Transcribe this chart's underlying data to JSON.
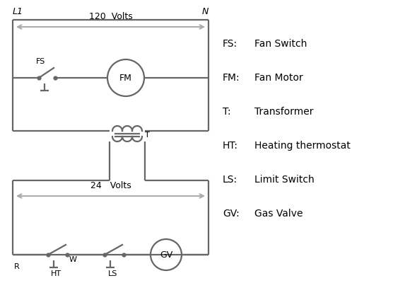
{
  "bg_color": "#ffffff",
  "line_color": "#666666",
  "text_color": "#000000",
  "legend_items": [
    [
      "FS:",
      "Fan Switch"
    ],
    [
      "FM:",
      "Fan Motor"
    ],
    [
      "T:",
      "Transformer"
    ],
    [
      "HT:",
      "Heating thermostat"
    ],
    [
      "LS:",
      "Limit Switch"
    ],
    [
      "GV:",
      "Gas Valve"
    ]
  ],
  "figsize": [
    5.9,
    4.0
  ],
  "dpi": 100
}
